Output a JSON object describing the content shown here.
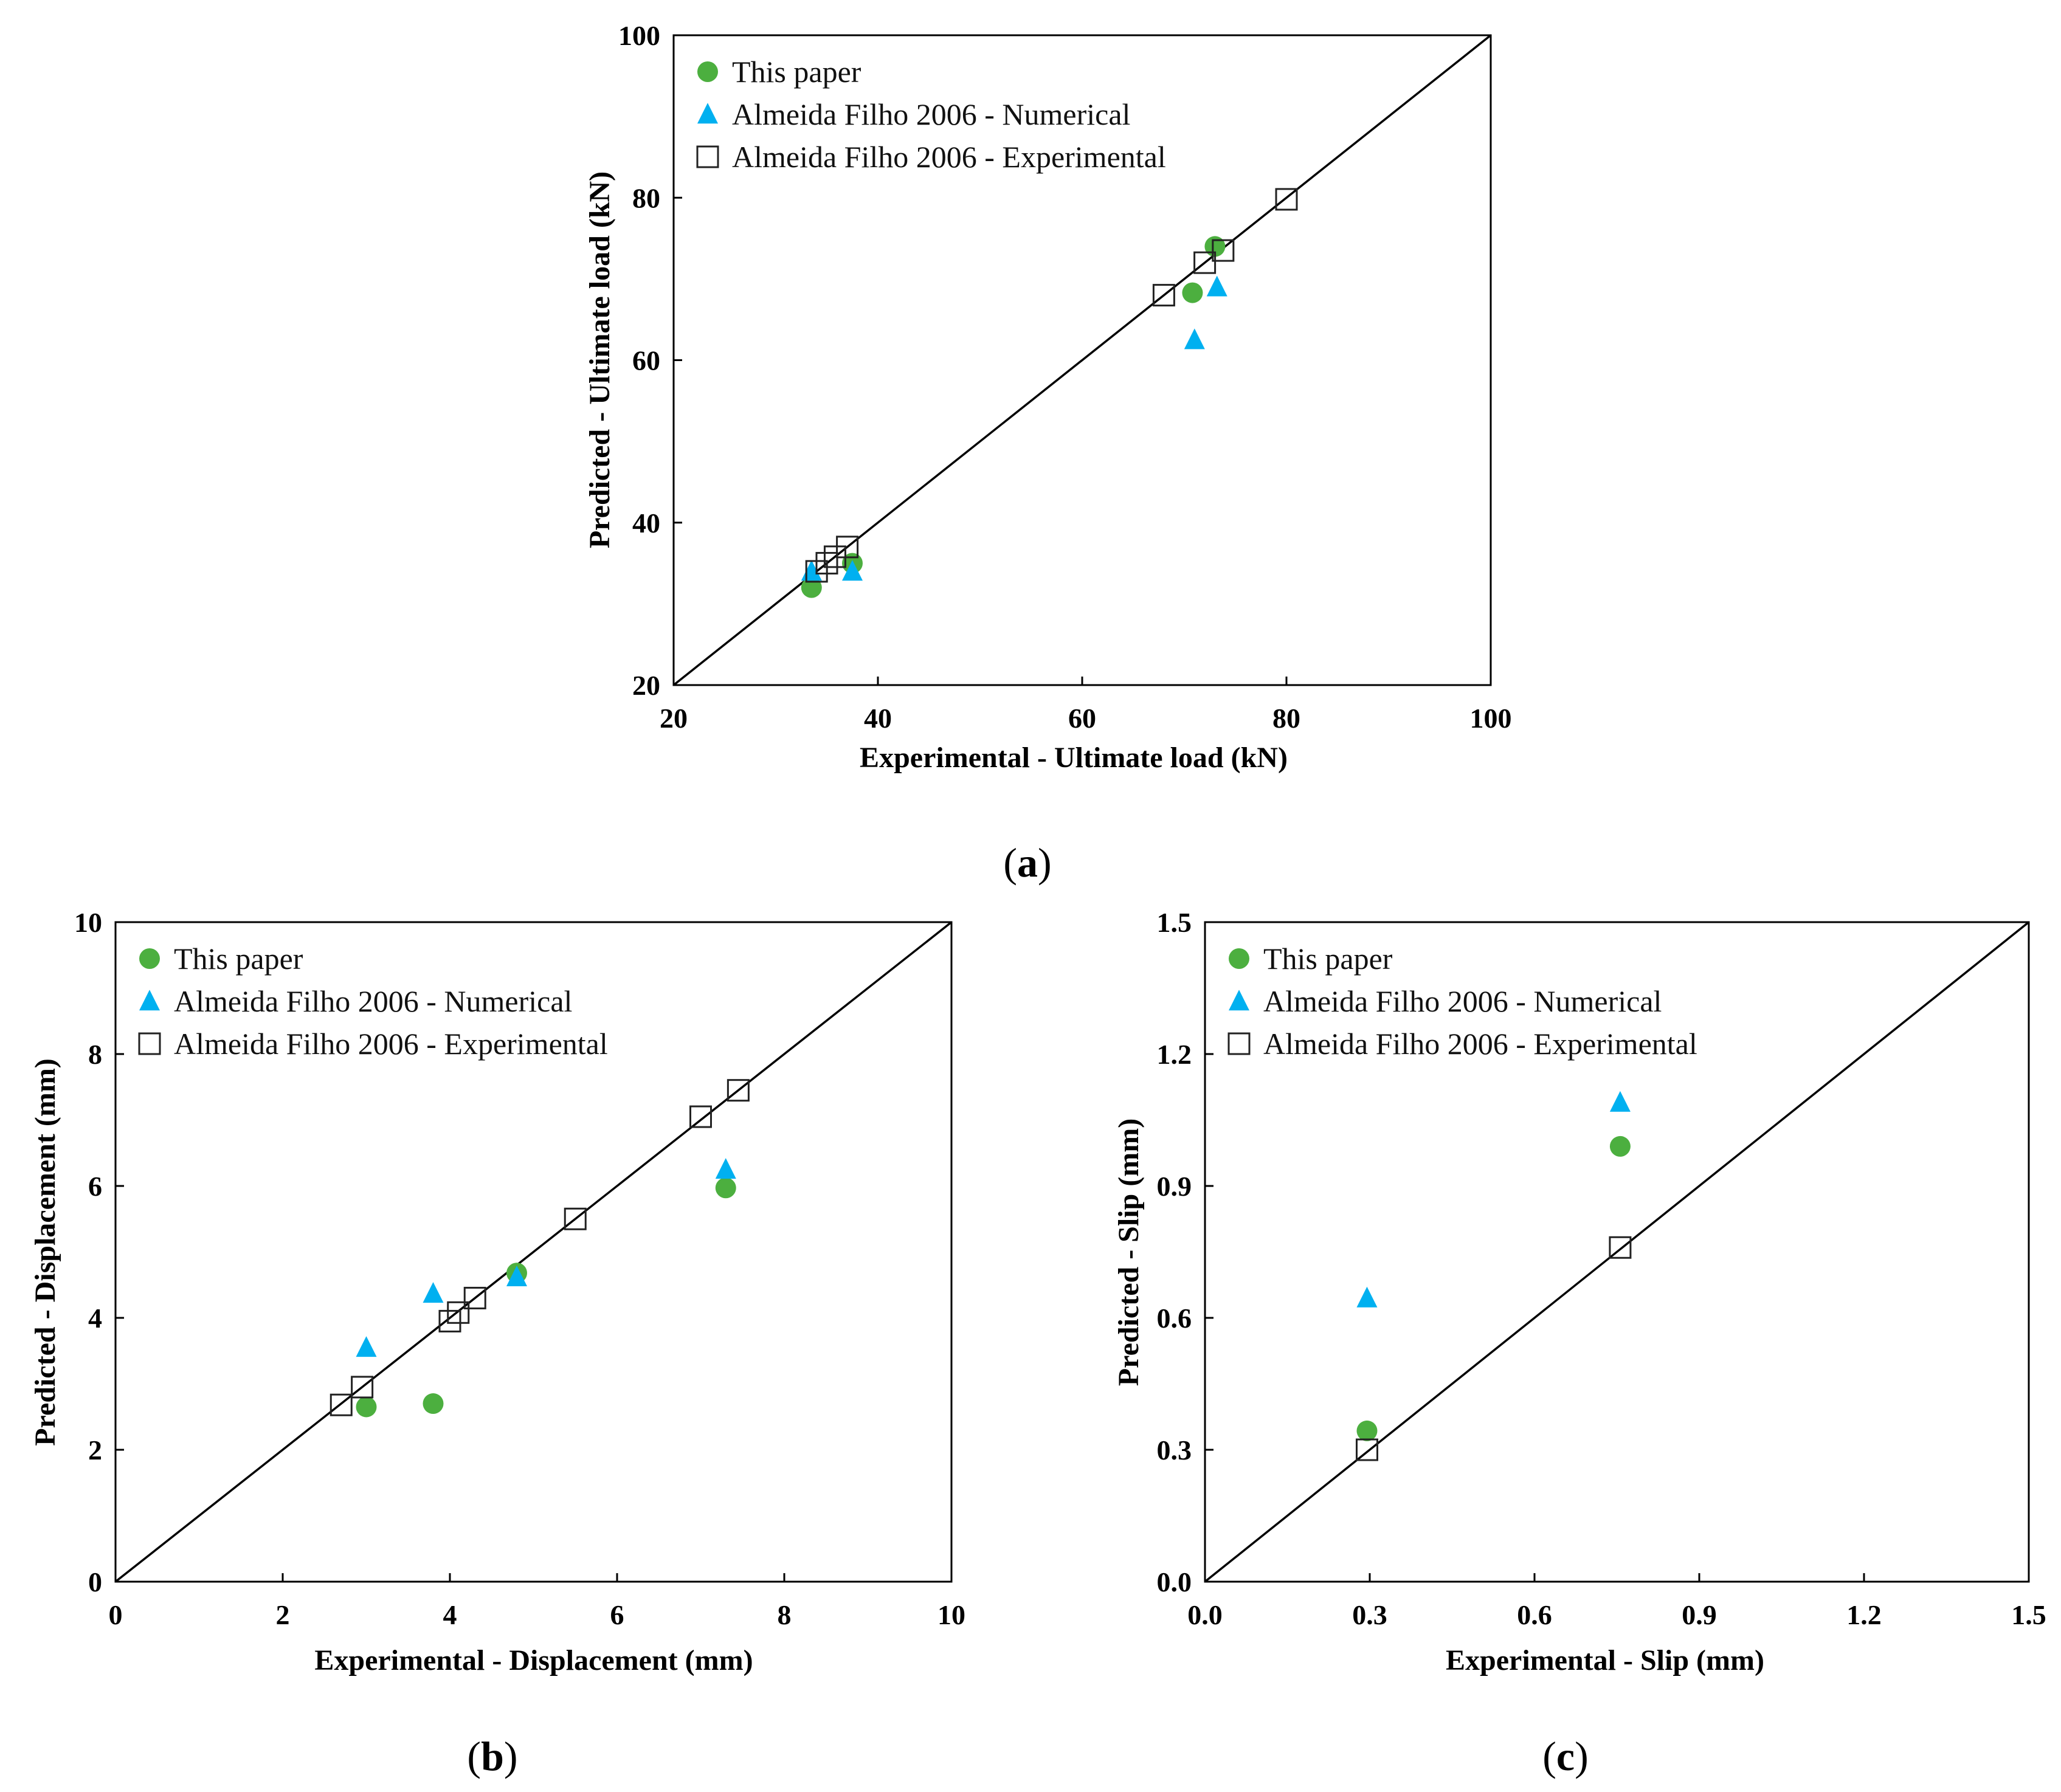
{
  "colors": {
    "this_paper": "#4caf3f",
    "numerical": "#00b0f0",
    "experimental_edge": "#222222",
    "axis": "#000000"
  },
  "series_names": [
    "This paper",
    "Almeida Filho 2006 - Numerical",
    "Almeida Filho 2006 - Experimental"
  ],
  "chart_data": [
    {
      "id": "a",
      "type": "scatter",
      "panel_label": "a",
      "xlabel": "Experimental  - Ultimate load (kN)",
      "ylabel": "Predicted  - Ultimate load (kN)",
      "xlim": [
        20,
        100
      ],
      "ylim": [
        20,
        100
      ],
      "xticks": [
        "20",
        "40",
        "60",
        "80",
        "100"
      ],
      "yticks": [
        "20",
        "40",
        "60",
        "80",
        "100"
      ],
      "reference_line": "y = x",
      "legend_position": "top-left",
      "series": [
        {
          "name": "This paper",
          "marker": "circle",
          "x": [
            33.5,
            37.5,
            70.8,
            73.0
          ],
          "y": [
            32.0,
            35.0,
            68.3,
            74.0
          ]
        },
        {
          "name": "Almeida Filho 2006 - Numerical",
          "marker": "triangle",
          "x": [
            33.5,
            37.5,
            71.0,
            73.2
          ],
          "y": [
            34.0,
            34.0,
            62.5,
            69.0
          ]
        },
        {
          "name": "Almeida Filho 2006 - Experimental",
          "marker": "square",
          "x": [
            34.0,
            35.0,
            35.8,
            37.0,
            68.0,
            72.0,
            73.8,
            80.0
          ],
          "y": [
            34.0,
            35.0,
            35.8,
            37.0,
            68.0,
            72.0,
            73.5,
            79.8
          ]
        }
      ]
    },
    {
      "id": "b",
      "type": "scatter",
      "panel_label": "b",
      "xlabel": "Experimental  - Displacement (mm)",
      "ylabel": "Predicted  - Displacement (mm)",
      "xlim": [
        0,
        10
      ],
      "ylim": [
        0,
        10
      ],
      "xticks": [
        "0",
        "2",
        "4",
        "6",
        "8",
        "10"
      ],
      "yticks": [
        "0",
        "2",
        "4",
        "6",
        "8",
        "10"
      ],
      "reference_line": "y = x",
      "legend_position": "top-left",
      "series": [
        {
          "name": "This paper",
          "marker": "circle",
          "x": [
            3.0,
            3.8,
            4.8,
            7.3
          ],
          "y": [
            2.65,
            2.7,
            4.68,
            5.97
          ]
        },
        {
          "name": "Almeida Filho 2006 - Numerical",
          "marker": "triangle",
          "x": [
            3.0,
            3.8,
            4.8,
            7.3
          ],
          "y": [
            3.55,
            4.37,
            4.62,
            6.25
          ]
        },
        {
          "name": "Almeida Filho 2006 - Experimental",
          "marker": "square",
          "x": [
            2.7,
            2.95,
            4.0,
            4.1,
            4.3,
            5.5,
            7.0,
            7.45
          ],
          "y": [
            2.68,
            2.95,
            3.95,
            4.08,
            4.3,
            5.5,
            7.05,
            7.45
          ]
        }
      ]
    },
    {
      "id": "c",
      "type": "scatter",
      "panel_label": "c",
      "xlabel": "Experimental  - Slip (mm)",
      "ylabel": "Predicted  - Slip (mm)",
      "xlim": [
        0,
        1.5
      ],
      "ylim": [
        0,
        1.5
      ],
      "xticks": [
        "0.0",
        "0.3",
        "0.6",
        "0.9",
        "1.2",
        "1.5"
      ],
      "yticks": [
        "0.0",
        "0.3",
        "0.6",
        "0.9",
        "1.2",
        "1.5"
      ],
      "reference_line": "y = x",
      "legend_position": "top-left",
      "series": [
        {
          "name": "This paper",
          "marker": "circle",
          "x": [
            0.295,
            0.756
          ],
          "y": [
            0.343,
            0.99
          ]
        },
        {
          "name": "Almeida Filho 2006 - Numerical",
          "marker": "triangle",
          "x": [
            0.295,
            0.756
          ],
          "y": [
            0.645,
            1.09
          ]
        },
        {
          "name": "Almeida Filho 2006 - Experimental",
          "marker": "square",
          "x": [
            0.295,
            0.756
          ],
          "y": [
            0.3,
            0.76
          ]
        }
      ]
    }
  ]
}
